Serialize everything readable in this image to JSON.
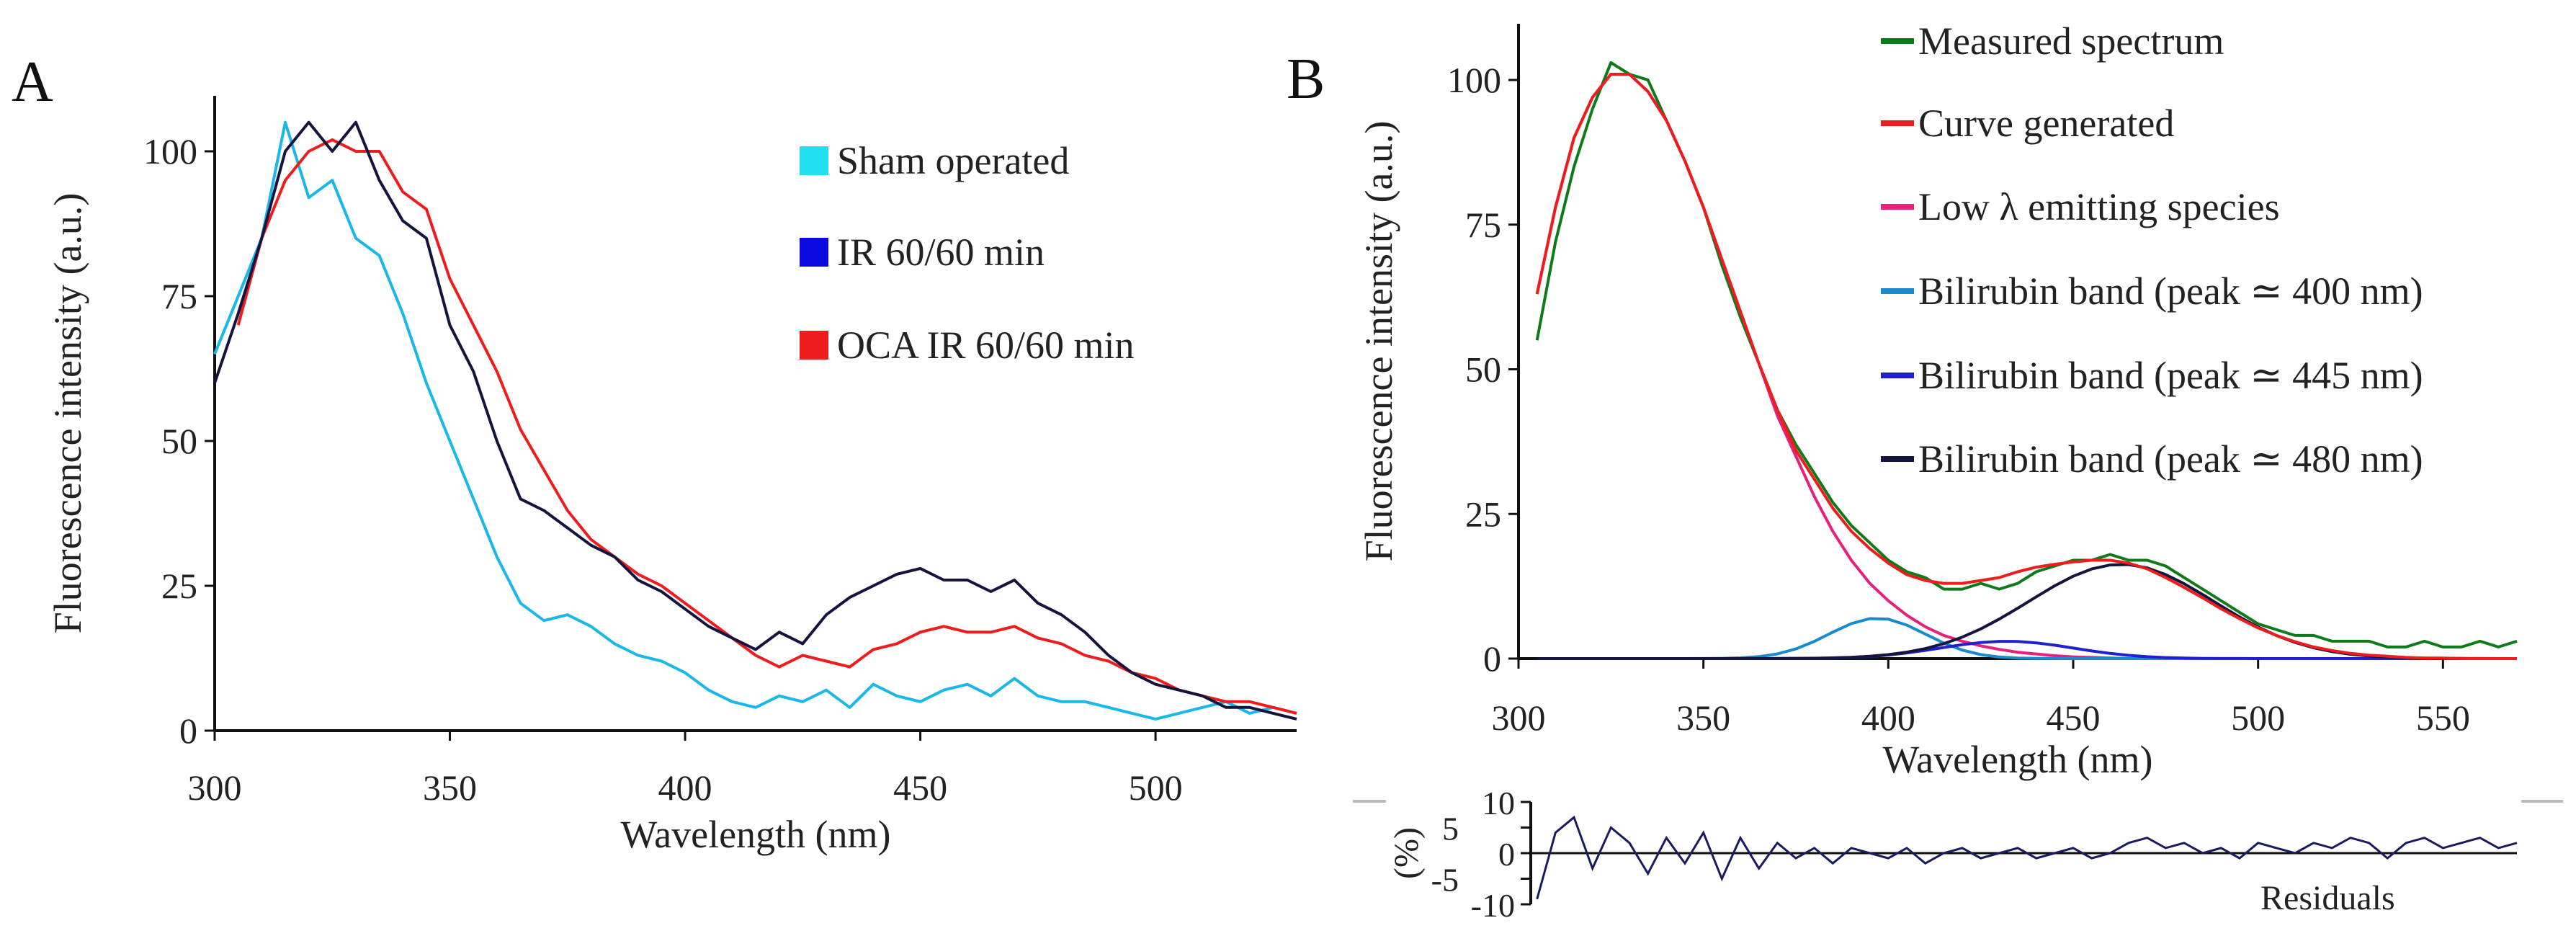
{
  "chart_data": [
    {
      "panel": "A",
      "type": "line",
      "xlabel": "Wavelength (nm)",
      "ylabel": "Fluorescence intensity (a.u.)",
      "xlim": [
        300,
        530
      ],
      "ylim": [
        0,
        110
      ],
      "xticks": [
        300,
        350,
        400,
        450,
        500
      ],
      "yticks": [
        0,
        25,
        50,
        75,
        100
      ],
      "legend_position": "top-right",
      "x": [
        300,
        305,
        310,
        315,
        320,
        325,
        330,
        335,
        340,
        345,
        350,
        355,
        360,
        365,
        370,
        375,
        380,
        385,
        390,
        395,
        400,
        405,
        410,
        415,
        420,
        425,
        430,
        435,
        440,
        445,
        450,
        455,
        460,
        465,
        470,
        475,
        480,
        485,
        490,
        495,
        500,
        505,
        510,
        515,
        520,
        525,
        530
      ],
      "series": [
        {
          "name": "Sham operated",
          "color": "#1ab8e8",
          "swatch": "#22e0f0",
          "values": [
            65,
            75,
            85,
            105,
            92,
            95,
            85,
            82,
            72,
            60,
            50,
            40,
            30,
            22,
            19,
            20,
            18,
            15,
            13,
            12,
            10,
            7,
            5,
            4,
            6,
            5,
            7,
            4,
            8,
            6,
            5,
            7,
            8,
            6,
            9,
            6,
            5,
            5,
            4,
            3,
            2,
            3,
            4,
            5,
            3,
            4,
            3
          ]
        },
        {
          "name": "IR 60/60 min",
          "color": "#14143f",
          "swatch": "#0a0ae0",
          "values": [
            60,
            72,
            85,
            100,
            105,
            100,
            105,
            95,
            88,
            85,
            70,
            62,
            50,
            40,
            38,
            35,
            32,
            30,
            26,
            24,
            21,
            18,
            16,
            14,
            17,
            15,
            20,
            23,
            25,
            27,
            28,
            26,
            26,
            24,
            26,
            22,
            20,
            17,
            13,
            10,
            8,
            7,
            6,
            4,
            4,
            3,
            2
          ]
        },
        {
          "name": "OCA IR 60/60 min",
          "color": "#ee1c1c",
          "swatch": "#ee1c1c",
          "values": [
            null,
            70,
            85,
            95,
            100,
            102,
            100,
            100,
            93,
            90,
            78,
            70,
            62,
            52,
            45,
            38,
            33,
            30,
            27,
            25,
            22,
            19,
            16,
            13,
            11,
            13,
            12,
            11,
            14,
            15,
            17,
            18,
            17,
            17,
            18,
            16,
            15,
            13,
            12,
            10,
            9,
            7,
            6,
            5,
            5,
            4,
            3
          ]
        }
      ]
    },
    {
      "panel": "B",
      "type": "line",
      "xlabel": "Wavelength (nm)",
      "ylabel": "Fluorescence intensity (a.u.)",
      "xlim": [
        300,
        570
      ],
      "ylim": [
        0,
        110
      ],
      "xticks": [
        300,
        350,
        400,
        450,
        500,
        550
      ],
      "yticks": [
        0,
        25,
        50,
        75,
        100
      ],
      "legend_position": "top-right",
      "x": [
        305,
        310,
        315,
        320,
        325,
        330,
        335,
        340,
        345,
        350,
        355,
        360,
        365,
        370,
        375,
        380,
        385,
        390,
        395,
        400,
        405,
        410,
        415,
        420,
        425,
        430,
        435,
        440,
        445,
        450,
        455,
        460,
        465,
        470,
        475,
        480,
        485,
        490,
        495,
        500,
        505,
        510,
        515,
        520,
        525,
        530,
        535,
        540,
        545,
        550,
        555,
        560,
        565,
        570
      ],
      "series": [
        {
          "name": "Measured spectrum",
          "color": "#0f7a1a",
          "values": [
            55,
            72,
            85,
            95,
            103,
            101,
            100,
            93,
            86,
            78,
            68,
            59,
            51,
            43,
            37,
            32,
            27,
            23,
            20,
            17,
            15,
            14,
            12,
            12,
            13,
            12,
            13,
            15,
            16,
            17,
            17,
            18,
            17,
            17,
            16,
            14,
            12,
            10,
            8,
            6,
            5,
            4,
            4,
            3,
            3,
            3,
            2,
            2,
            3,
            2,
            2,
            3,
            2,
            3
          ]
        },
        {
          "name": "Curve generated",
          "color": "#ee1c1c",
          "values": [
            63,
            78,
            90,
            97,
            101,
            101,
            98,
            93,
            86,
            78,
            69,
            60,
            51,
            43,
            36,
            31,
            26,
            22,
            19,
            16.5,
            14.5,
            13.5,
            13,
            13,
            13.5,
            14,
            15,
            15.8,
            16.3,
            16.7,
            17,
            17,
            16.5,
            15.5,
            14,
            12.3,
            10.5,
            8.6,
            6.9,
            5.3,
            4,
            2.9,
            2,
            1.4,
            0.9,
            0.6,
            0.4,
            0.2,
            0.1,
            0.1,
            0,
            0,
            0,
            0
          ]
        },
        {
          "name": "Low λ emitting species",
          "color": "#e8207a",
          "values": [
            63,
            78,
            90,
            97,
            101,
            101,
            98,
            93,
            86,
            78,
            69,
            60,
            51,
            42,
            35,
            28,
            22,
            17,
            13,
            10,
            7.5,
            5.5,
            4,
            3,
            2.2,
            1.6,
            1.1,
            0.8,
            0.5,
            0.3,
            0.2,
            0.1,
            0,
            0,
            0,
            0,
            0,
            0,
            0,
            0,
            0,
            0,
            0,
            0,
            0,
            0,
            0,
            0,
            0,
            0,
            0,
            0,
            0,
            0
          ]
        },
        {
          "name": "Bilirubin band (peak ≃ 400 nm)",
          "color": "#1a8ad0",
          "gaussian": {
            "peak": 7,
            "center_nm": 397,
            "sigma_nm": 13
          }
        },
        {
          "name": "Bilirubin band (peak ≃ 445 nm)",
          "color": "#2020d0",
          "gaussian": {
            "peak": 3,
            "center_nm": 432,
            "sigma_nm": 18
          }
        },
        {
          "name": "Bilirubin band (peak ≃ 480 nm)",
          "color": "#14143f",
          "gaussian": {
            "peak": 16.3,
            "center_nm": 463,
            "sigma_nm": 25
          }
        }
      ]
    },
    {
      "panel": "B-residuals",
      "type": "line",
      "title": "Residuals",
      "ylabel": "(%)",
      "ylim": [
        -10,
        10
      ],
      "yticks": [
        10,
        5,
        0,
        -5,
        -10
      ],
      "xlim": [
        300,
        570
      ],
      "x": [
        305,
        310,
        315,
        320,
        325,
        330,
        335,
        340,
        345,
        350,
        355,
        360,
        365,
        370,
        375,
        380,
        385,
        390,
        395,
        400,
        405,
        410,
        415,
        420,
        425,
        430,
        435,
        440,
        445,
        450,
        455,
        460,
        465,
        470,
        475,
        480,
        485,
        490,
        495,
        500,
        505,
        510,
        515,
        520,
        525,
        530,
        535,
        540,
        545,
        550,
        555,
        560,
        565,
        570
      ],
      "series": [
        {
          "name": "Residuals",
          "color": "#1a1a60",
          "values": [
            -9,
            4,
            7,
            -3,
            5,
            2,
            -4,
            3,
            -2,
            4,
            -5,
            3,
            -3,
            2,
            -1,
            1,
            -2,
            1,
            0,
            -1,
            1,
            -2,
            0,
            1,
            -1,
            0,
            1,
            -1,
            0,
            1,
            -1,
            0,
            2,
            3,
            1,
            2,
            0,
            1,
            -1,
            2,
            1,
            0,
            2,
            1,
            3,
            2,
            -1,
            2,
            3,
            1,
            2,
            3,
            1,
            2
          ]
        }
      ]
    }
  ],
  "panel_labels": [
    "A",
    "B"
  ]
}
